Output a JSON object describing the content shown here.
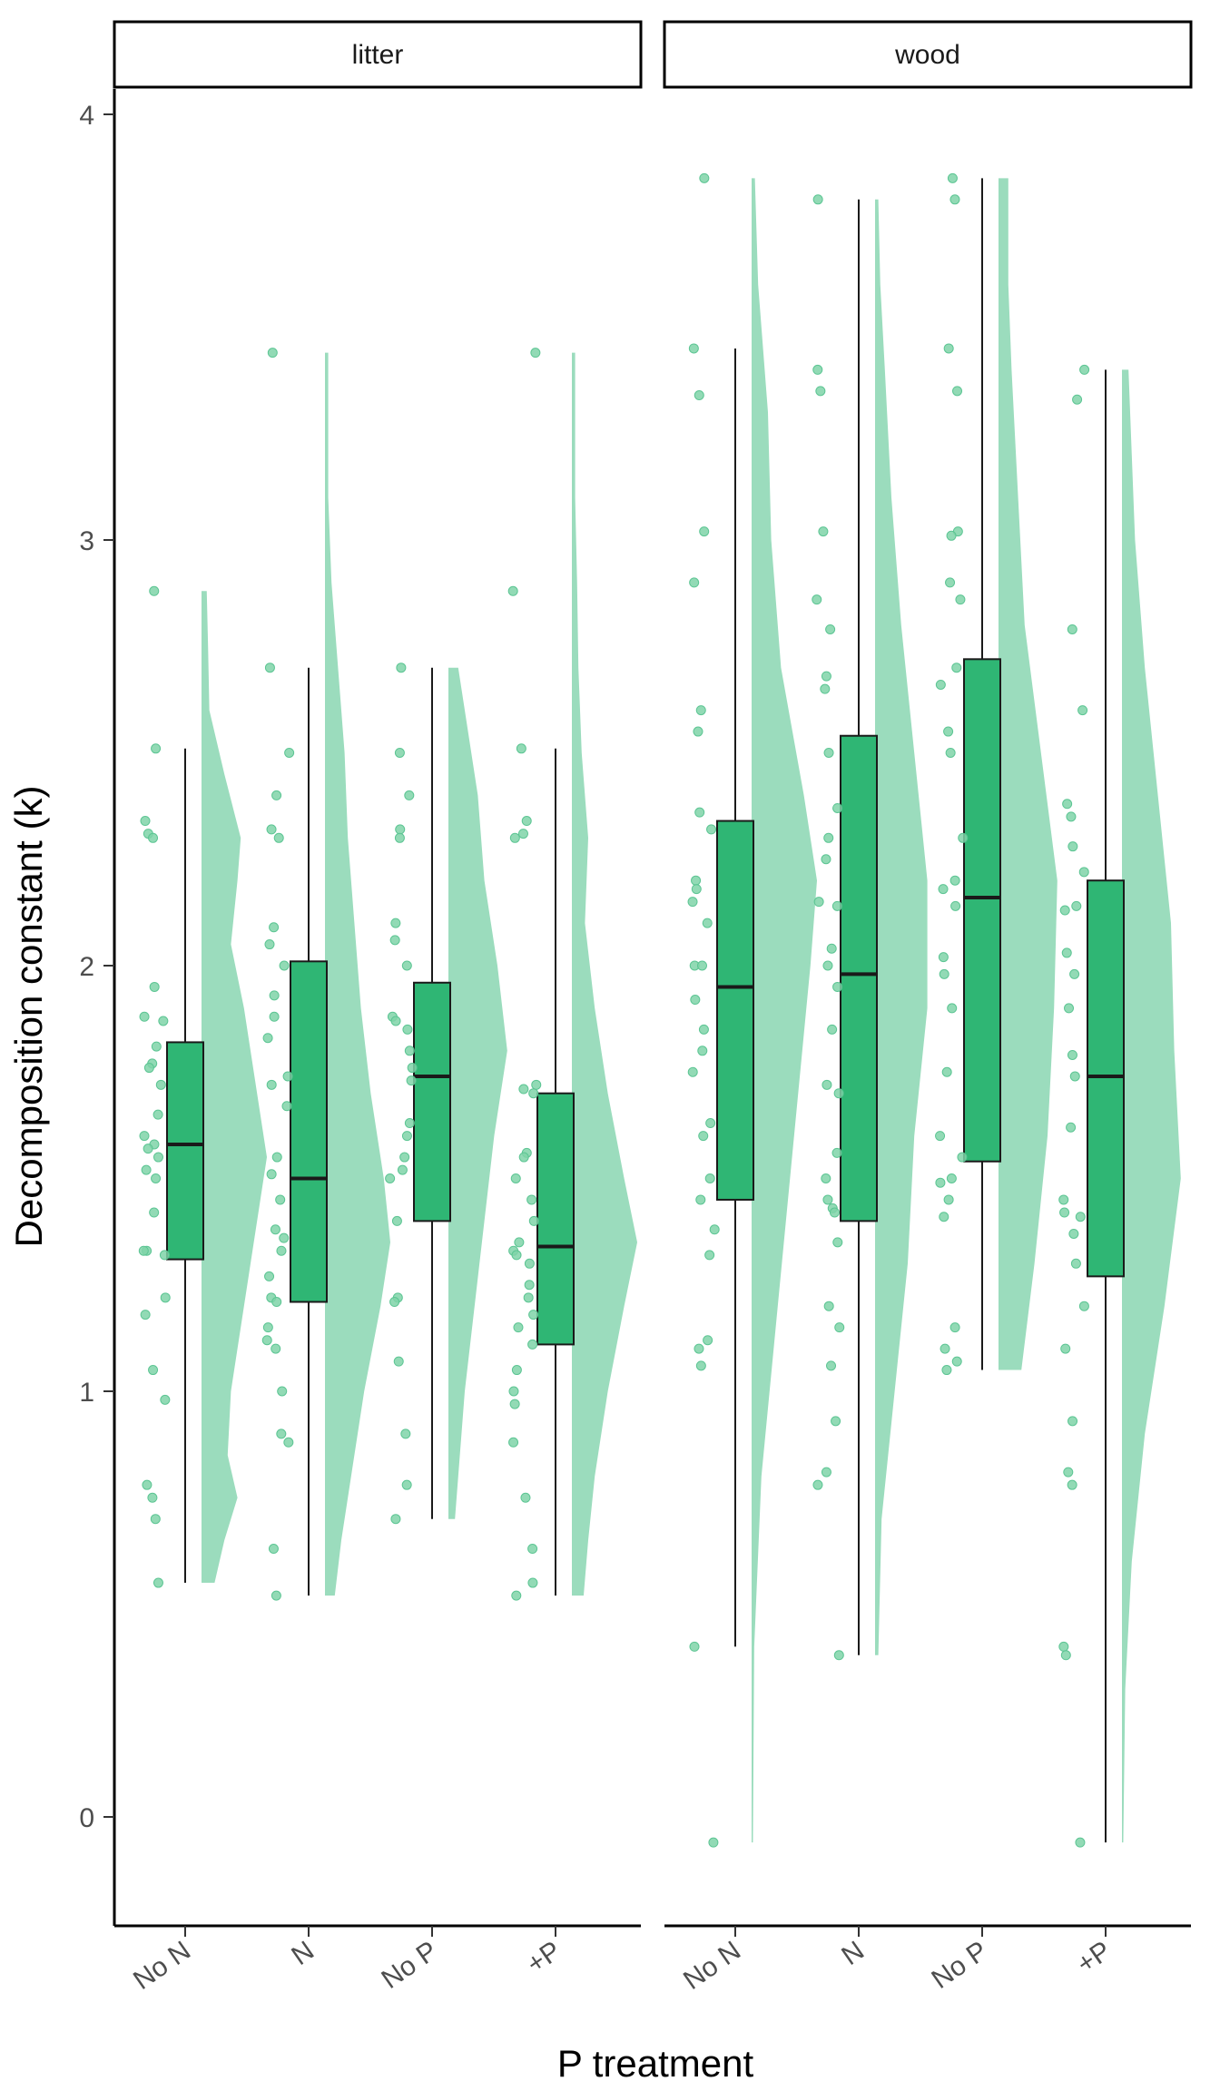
{
  "colors": {
    "box_fill": "#2fb674",
    "violin_fill": "#9bdcbd",
    "point_fill": "#7fd3a8",
    "line": "#1a1a1a"
  },
  "chart_data": {
    "type": "raincloud",
    "xlabel": "P treatment",
    "ylabel": "Decomposition constant (k)",
    "ylim": [
      -0.25,
      4.05
    ],
    "yticks": [
      0,
      1,
      2,
      3,
      4
    ],
    "grid": false,
    "legend": "none",
    "panels": [
      {
        "strip": "litter",
        "groups": [
          {
            "label": "No N",
            "box": {
              "lower_whisker": 0.55,
              "q1": 1.31,
              "median": 1.58,
              "q3": 1.82,
              "upper_whisker": 2.51
            },
            "points": [
              2.88,
              2.51,
              2.34,
              2.31,
              2.3,
              1.95,
              1.88,
              1.87,
              1.81,
              1.77,
              1.76,
              1.72,
              1.65,
              1.6,
              1.58,
              1.57,
              1.55,
              1.52,
              1.5,
              1.42,
              1.33,
              1.33,
              1.32,
              1.22,
              1.18,
              1.05,
              0.98,
              0.78,
              0.75,
              0.7,
              0.55
            ],
            "violin": [
              [
                0.55,
                0.2
              ],
              [
                0.65,
                0.35
              ],
              [
                0.75,
                0.55
              ],
              [
                0.85,
                0.4
              ],
              [
                1.0,
                0.45
              ],
              [
                1.15,
                0.6
              ],
              [
                1.3,
                0.75
              ],
              [
                1.45,
                0.9
              ],
              [
                1.55,
                1.0
              ],
              [
                1.7,
                0.85
              ],
              [
                1.9,
                0.65
              ],
              [
                2.05,
                0.45
              ],
              [
                2.2,
                0.55
              ],
              [
                2.3,
                0.6
              ],
              [
                2.45,
                0.35
              ],
              [
                2.6,
                0.12
              ],
              [
                2.75,
                0.1
              ],
              [
                2.88,
                0.08
              ]
            ]
          },
          {
            "label": "N",
            "box": {
              "lower_whisker": 0.52,
              "q1": 1.21,
              "median": 1.5,
              "q3": 2.01,
              "upper_whisker": 2.7
            },
            "points": [
              3.44,
              2.7,
              2.5,
              2.4,
              2.32,
              2.3,
              2.09,
              2.05,
              2.0,
              1.93,
              1.88,
              1.83,
              1.74,
              1.72,
              1.67,
              1.55,
              1.51,
              1.45,
              1.38,
              1.36,
              1.33,
              1.27,
              1.22,
              1.21,
              1.15,
              1.12,
              1.1,
              1.0,
              0.9,
              0.88,
              0.63,
              0.52
            ],
            "violin": [
              [
                0.52,
                0.15
              ],
              [
                0.65,
                0.25
              ],
              [
                0.8,
                0.4
              ],
              [
                1.0,
                0.6
              ],
              [
                1.2,
                0.85
              ],
              [
                1.35,
                1.0
              ],
              [
                1.5,
                0.9
              ],
              [
                1.7,
                0.7
              ],
              [
                1.9,
                0.55
              ],
              [
                2.1,
                0.45
              ],
              [
                2.3,
                0.35
              ],
              [
                2.5,
                0.3
              ],
              [
                2.7,
                0.2
              ],
              [
                2.9,
                0.1
              ],
              [
                3.1,
                0.05
              ],
              [
                3.3,
                0.05
              ],
              [
                3.44,
                0.05
              ]
            ]
          },
          {
            "label": "No P",
            "box": {
              "lower_whisker": 0.7,
              "q1": 1.4,
              "median": 1.74,
              "q3": 1.96,
              "upper_whisker": 2.7
            },
            "points": [
              2.7,
              2.5,
              2.4,
              2.32,
              2.3,
              2.1,
              2.06,
              2.0,
              1.88,
              1.87,
              1.85,
              1.8,
              1.76,
              1.73,
              1.63,
              1.6,
              1.55,
              1.52,
              1.5,
              1.4,
              1.22,
              1.21,
              1.07,
              0.9,
              0.78,
              0.7
            ],
            "violin": [
              [
                0.7,
                0.1
              ],
              [
                0.8,
                0.15
              ],
              [
                1.0,
                0.25
              ],
              [
                1.2,
                0.4
              ],
              [
                1.4,
                0.55
              ],
              [
                1.6,
                0.7
              ],
              [
                1.8,
                0.9
              ],
              [
                2.0,
                0.75
              ],
              [
                2.2,
                0.55
              ],
              [
                2.4,
                0.45
              ],
              [
                2.55,
                0.3
              ],
              [
                2.7,
                0.15
              ]
            ]
          },
          {
            "label": "+P",
            "box": {
              "lower_whisker": 0.52,
              "q1": 1.11,
              "median": 1.34,
              "q3": 1.7,
              "upper_whisker": 2.51
            },
            "points": [
              3.44,
              2.88,
              2.51,
              2.34,
              2.31,
              2.3,
              1.72,
              1.71,
              1.7,
              1.56,
              1.55,
              1.5,
              1.45,
              1.4,
              1.35,
              1.33,
              1.32,
              1.3,
              1.25,
              1.22,
              1.18,
              1.15,
              1.11,
              1.05,
              1.0,
              0.97,
              0.88,
              0.75,
              0.63,
              0.55,
              0.52
            ],
            "violin": [
              [
                0.52,
                0.18
              ],
              [
                0.65,
                0.25
              ],
              [
                0.8,
                0.35
              ],
              [
                1.0,
                0.55
              ],
              [
                1.2,
                0.8
              ],
              [
                1.35,
                1.0
              ],
              [
                1.5,
                0.8
              ],
              [
                1.7,
                0.55
              ],
              [
                1.9,
                0.35
              ],
              [
                2.1,
                0.2
              ],
              [
                2.3,
                0.25
              ],
              [
                2.5,
                0.15
              ],
              [
                2.7,
                0.1
              ],
              [
                2.9,
                0.08
              ],
              [
                3.1,
                0.05
              ],
              [
                3.3,
                0.05
              ],
              [
                3.44,
                0.05
              ]
            ]
          }
        ]
      },
      {
        "strip": "wood",
        "groups": [
          {
            "label": "No N",
            "box": {
              "lower_whisker": 0.4,
              "q1": 1.45,
              "median": 1.95,
              "q3": 2.34,
              "upper_whisker": 3.45
            },
            "points": [
              3.85,
              3.45,
              3.34,
              3.02,
              2.9,
              2.6,
              2.55,
              2.36,
              2.32,
              2.2,
              2.18,
              2.15,
              2.1,
              2.0,
              2.0,
              1.92,
              1.85,
              1.8,
              1.75,
              1.63,
              1.6,
              1.5,
              1.45,
              1.38,
              1.32,
              1.12,
              1.1,
              1.06,
              0.4,
              -0.06
            ],
            "violin": [
              [
                -0.06,
                0.02
              ],
              [
                0.4,
                0.04
              ],
              [
                0.8,
                0.15
              ],
              [
                1.2,
                0.4
              ],
              [
                1.6,
                0.65
              ],
              [
                2.0,
                0.9
              ],
              [
                2.2,
                1.0
              ],
              [
                2.4,
                0.8
              ],
              [
                2.7,
                0.45
              ],
              [
                3.0,
                0.3
              ],
              [
                3.3,
                0.25
              ],
              [
                3.6,
                0.1
              ],
              [
                3.85,
                0.05
              ]
            ]
          },
          {
            "label": "N",
            "box": {
              "lower_whisker": 0.38,
              "q1": 1.4,
              "median": 1.98,
              "q3": 2.54,
              "upper_whisker": 3.8
            },
            "points": [
              3.8,
              3.4,
              3.35,
              3.02,
              2.86,
              2.79,
              2.68,
              2.65,
              2.5,
              2.37,
              2.3,
              2.25,
              2.15,
              2.14,
              2.04,
              2.0,
              1.95,
              1.85,
              1.72,
              1.7,
              1.56,
              1.5,
              1.45,
              1.43,
              1.42,
              1.35,
              1.2,
              1.15,
              1.06,
              0.93,
              0.81,
              0.78,
              0.38
            ],
            "violin": [
              [
                0.38,
                0.05
              ],
              [
                0.7,
                0.1
              ],
              [
                1.0,
                0.3
              ],
              [
                1.3,
                0.5
              ],
              [
                1.6,
                0.6
              ],
              [
                1.9,
                0.8
              ],
              [
                2.2,
                0.8
              ],
              [
                2.5,
                0.6
              ],
              [
                2.8,
                0.4
              ],
              [
                3.1,
                0.25
              ],
              [
                3.4,
                0.15
              ],
              [
                3.6,
                0.08
              ],
              [
                3.8,
                0.05
              ]
            ]
          },
          {
            "label": "No P",
            "box": {
              "lower_whisker": 1.05,
              "q1": 1.54,
              "median": 2.16,
              "q3": 2.72,
              "upper_whisker": 3.85
            },
            "points": [
              3.85,
              3.8,
              3.45,
              3.35,
              3.02,
              3.01,
              2.9,
              2.86,
              2.7,
              2.66,
              2.55,
              2.5,
              2.3,
              2.2,
              2.18,
              2.14,
              2.02,
              1.98,
              1.9,
              1.75,
              1.6,
              1.55,
              1.5,
              1.49,
              1.45,
              1.41,
              1.15,
              1.1,
              1.07,
              1.05
            ],
            "violin": [
              [
                1.05,
                0.35
              ],
              [
                1.3,
                0.55
              ],
              [
                1.6,
                0.75
              ],
              [
                1.9,
                0.85
              ],
              [
                2.2,
                0.9
              ],
              [
                2.5,
                0.65
              ],
              [
                2.8,
                0.4
              ],
              [
                3.1,
                0.3
              ],
              [
                3.4,
                0.2
              ],
              [
                3.6,
                0.15
              ],
              [
                3.85,
                0.15
              ]
            ]
          },
          {
            "label": "+P",
            "box": {
              "lower_whisker": -0.06,
              "q1": 1.27,
              "median": 1.74,
              "q3": 2.2,
              "upper_whisker": 3.4
            },
            "points": [
              3.4,
              3.33,
              2.79,
              2.6,
              2.38,
              2.35,
              2.28,
              2.22,
              2.14,
              2.13,
              2.03,
              1.98,
              1.9,
              1.79,
              1.74,
              1.62,
              1.45,
              1.42,
              1.41,
              1.37,
              1.3,
              1.2,
              1.1,
              0.93,
              0.81,
              0.78,
              0.4,
              0.38,
              -0.06
            ],
            "violin": [
              [
                -0.06,
                0.02
              ],
              [
                0.3,
                0.05
              ],
              [
                0.6,
                0.15
              ],
              [
                0.9,
                0.35
              ],
              [
                1.2,
                0.65
              ],
              [
                1.5,
                0.9
              ],
              [
                1.8,
                0.8
              ],
              [
                2.1,
                0.75
              ],
              [
                2.4,
                0.55
              ],
              [
                2.7,
                0.35
              ],
              [
                3.0,
                0.2
              ],
              [
                3.2,
                0.15
              ],
              [
                3.4,
                0.1
              ]
            ]
          }
        ]
      }
    ]
  }
}
